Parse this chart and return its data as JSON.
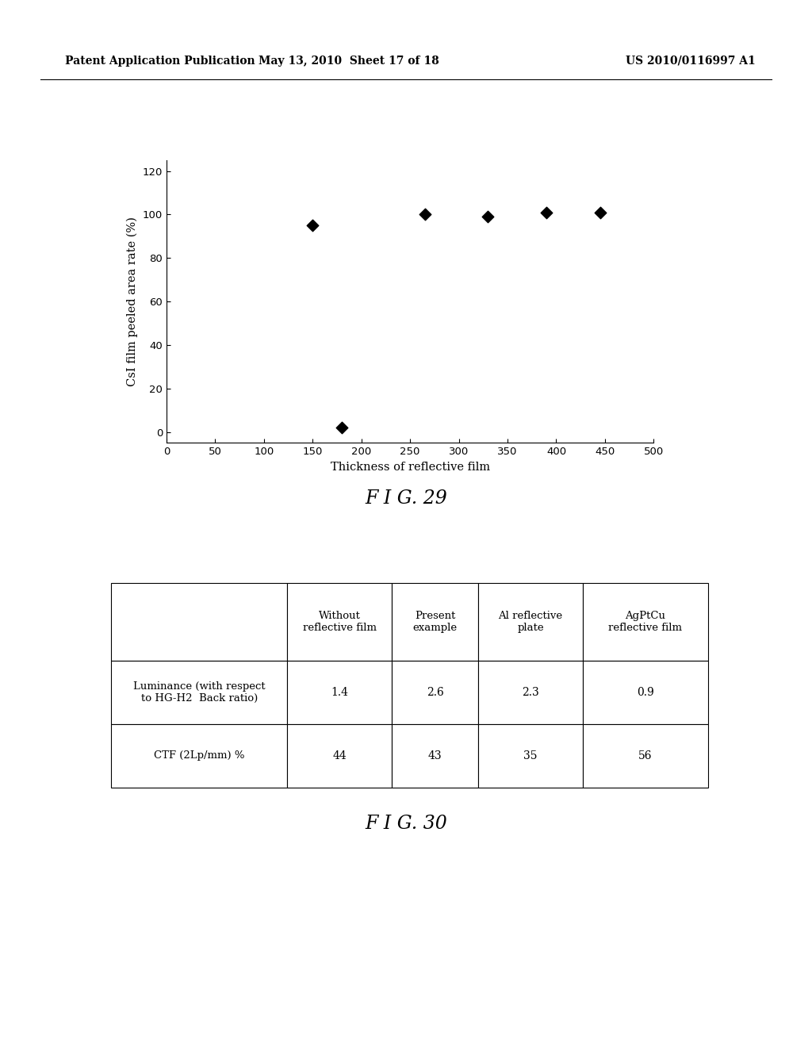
{
  "header_left": "Patent Application Publication",
  "header_mid": "May 13, 2010  Sheet 17 of 18",
  "header_right": "US 2010/0116997 A1",
  "scatter_x": [
    150,
    180,
    265,
    330,
    390,
    445
  ],
  "scatter_y": [
    95,
    2,
    100,
    99,
    101,
    101
  ],
  "xlabel": "Thickness of reflective film",
  "ylabel": "CsI film peeled area rate (%)",
  "xlim": [
    0,
    500
  ],
  "ylim": [
    -5,
    125
  ],
  "xticks": [
    0,
    50,
    100,
    150,
    200,
    250,
    300,
    350,
    400,
    450,
    500
  ],
  "yticks": [
    0,
    20,
    40,
    60,
    80,
    100,
    120
  ],
  "fig29_label": "F I G. 29",
  "fig30_label": "F I G. 30",
  "table_col_headers": [
    "",
    "Without\nreflective film",
    "Present\nexample",
    "Al reflective\nplate",
    "AgPtCu\nreflective film"
  ],
  "table_row1_label": "Luminance (with respect\nto HG-H2  Back ratio)",
  "table_row2_label": "CTF (2Lp/mm) %",
  "table_row1_values": [
    "1.4",
    "2.6",
    "2.3",
    "0.9"
  ],
  "table_row2_values": [
    "44",
    "43",
    "35",
    "56"
  ],
  "background_color": "#ffffff",
  "marker_color": "#000000",
  "marker_size": 10,
  "axis_color": "#000000"
}
